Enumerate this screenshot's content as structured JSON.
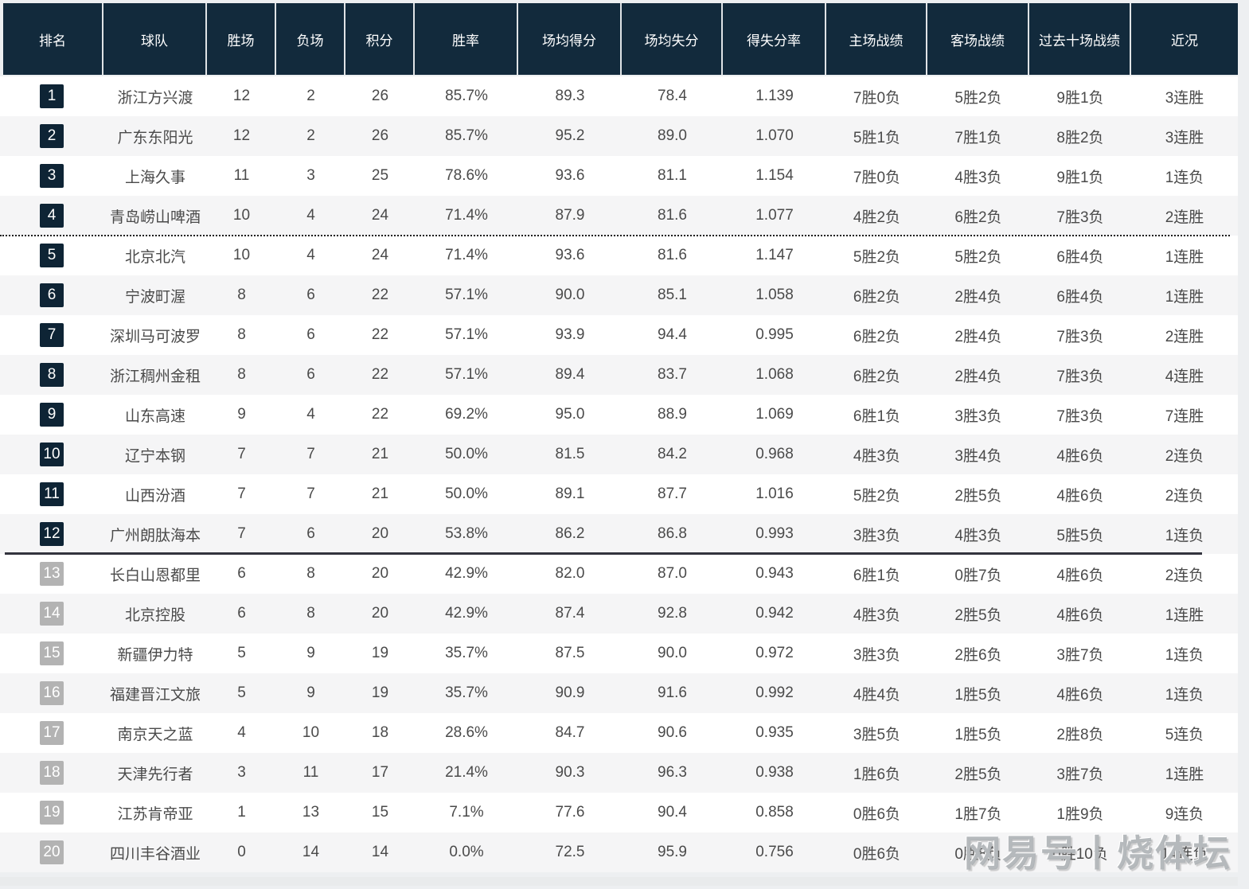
{
  "colors": {
    "page_bg": "#edeff1",
    "header_bg": "#122a3c",
    "badge_dark": "#0e2435",
    "badge_gray": "#b3b3b3",
    "row_alt": "#f5f5f6",
    "solid_separator": "#33343e"
  },
  "watermark": "网易号丨烧体坛",
  "table": {
    "columns": [
      "排名",
      "球队",
      "胜场",
      "负场",
      "积分",
      "胜率",
      "场均得分",
      "场均失分",
      "得失分率",
      "主场战绩",
      "客场战绩",
      "过去十场战绩",
      "近况"
    ],
    "rows": [
      {
        "rank": "1",
        "team": "浙江方兴渡",
        "wins": "12",
        "losses": "2",
        "points": "26",
        "win_pct": "85.7%",
        "ppg": "89.3",
        "papg": "78.4",
        "ratio": "1.139",
        "home": "7胜0负",
        "away": "5胜2负",
        "last10": "9胜1负",
        "streak": "3连胜",
        "badge": "dark",
        "separator": ""
      },
      {
        "rank": "2",
        "team": "广东东阳光",
        "wins": "12",
        "losses": "2",
        "points": "26",
        "win_pct": "85.7%",
        "ppg": "95.2",
        "papg": "89.0",
        "ratio": "1.070",
        "home": "5胜1负",
        "away": "7胜1负",
        "last10": "8胜2负",
        "streak": "3连胜",
        "badge": "dark",
        "separator": ""
      },
      {
        "rank": "3",
        "team": "上海久事",
        "wins": "11",
        "losses": "3",
        "points": "25",
        "win_pct": "78.6%",
        "ppg": "93.6",
        "papg": "81.1",
        "ratio": "1.154",
        "home": "7胜0负",
        "away": "4胜3负",
        "last10": "9胜1负",
        "streak": "1连负",
        "badge": "dark",
        "separator": ""
      },
      {
        "rank": "4",
        "team": "青岛崂山啤酒",
        "wins": "10",
        "losses": "4",
        "points": "24",
        "win_pct": "71.4%",
        "ppg": "87.9",
        "papg": "81.6",
        "ratio": "1.077",
        "home": "4胜2负",
        "away": "6胜2负",
        "last10": "7胜3负",
        "streak": "2连胜",
        "badge": "dark",
        "separator": "dotted"
      },
      {
        "rank": "5",
        "team": "北京北汽",
        "wins": "10",
        "losses": "4",
        "points": "24",
        "win_pct": "71.4%",
        "ppg": "93.6",
        "papg": "81.6",
        "ratio": "1.147",
        "home": "5胜2负",
        "away": "5胜2负",
        "last10": "6胜4负",
        "streak": "1连胜",
        "badge": "dark",
        "separator": ""
      },
      {
        "rank": "6",
        "team": "宁波町渥",
        "wins": "8",
        "losses": "6",
        "points": "22",
        "win_pct": "57.1%",
        "ppg": "90.0",
        "papg": "85.1",
        "ratio": "1.058",
        "home": "6胜2负",
        "away": "2胜4负",
        "last10": "6胜4负",
        "streak": "1连胜",
        "badge": "dark",
        "separator": ""
      },
      {
        "rank": "7",
        "team": "深圳马可波罗",
        "wins": "8",
        "losses": "6",
        "points": "22",
        "win_pct": "57.1%",
        "ppg": "93.9",
        "papg": "94.4",
        "ratio": "0.995",
        "home": "6胜2负",
        "away": "2胜4负",
        "last10": "7胜3负",
        "streak": "2连胜",
        "badge": "dark",
        "separator": ""
      },
      {
        "rank": "8",
        "team": "浙江稠州金租",
        "wins": "8",
        "losses": "6",
        "points": "22",
        "win_pct": "57.1%",
        "ppg": "89.4",
        "papg": "83.7",
        "ratio": "1.068",
        "home": "6胜2负",
        "away": "2胜4负",
        "last10": "7胜3负",
        "streak": "4连胜",
        "badge": "dark",
        "separator": ""
      },
      {
        "rank": "9",
        "team": "山东高速",
        "wins": "9",
        "losses": "4",
        "points": "22",
        "win_pct": "69.2%",
        "ppg": "95.0",
        "papg": "88.9",
        "ratio": "1.069",
        "home": "6胜1负",
        "away": "3胜3负",
        "last10": "7胜3负",
        "streak": "7连胜",
        "badge": "dark",
        "separator": ""
      },
      {
        "rank": "10",
        "team": "辽宁本钢",
        "wins": "7",
        "losses": "7",
        "points": "21",
        "win_pct": "50.0%",
        "ppg": "81.5",
        "papg": "84.2",
        "ratio": "0.968",
        "home": "4胜3负",
        "away": "3胜4负",
        "last10": "4胜6负",
        "streak": "2连负",
        "badge": "dark",
        "separator": ""
      },
      {
        "rank": "11",
        "team": "山西汾酒",
        "wins": "7",
        "losses": "7",
        "points": "21",
        "win_pct": "50.0%",
        "ppg": "89.1",
        "papg": "87.7",
        "ratio": "1.016",
        "home": "5胜2负",
        "away": "2胜5负",
        "last10": "4胜6负",
        "streak": "2连负",
        "badge": "dark",
        "separator": ""
      },
      {
        "rank": "12",
        "team": "广州朗肽海本",
        "wins": "7",
        "losses": "6",
        "points": "20",
        "win_pct": "53.8%",
        "ppg": "86.2",
        "papg": "86.8",
        "ratio": "0.993",
        "home": "3胜3负",
        "away": "4胜3负",
        "last10": "5胜5负",
        "streak": "1连负",
        "badge": "dark",
        "separator": "solid"
      },
      {
        "rank": "13",
        "team": "长白山恩都里",
        "wins": "6",
        "losses": "8",
        "points": "20",
        "win_pct": "42.9%",
        "ppg": "82.0",
        "papg": "87.0",
        "ratio": "0.943",
        "home": "6胜1负",
        "away": "0胜7负",
        "last10": "4胜6负",
        "streak": "2连负",
        "badge": "gray",
        "separator": ""
      },
      {
        "rank": "14",
        "team": "北京控股",
        "wins": "6",
        "losses": "8",
        "points": "20",
        "win_pct": "42.9%",
        "ppg": "87.4",
        "papg": "92.8",
        "ratio": "0.942",
        "home": "4胜3负",
        "away": "2胜5负",
        "last10": "4胜6负",
        "streak": "1连胜",
        "badge": "gray",
        "separator": ""
      },
      {
        "rank": "15",
        "team": "新疆伊力特",
        "wins": "5",
        "losses": "9",
        "points": "19",
        "win_pct": "35.7%",
        "ppg": "87.5",
        "papg": "90.0",
        "ratio": "0.972",
        "home": "3胜3负",
        "away": "2胜6负",
        "last10": "3胜7负",
        "streak": "1连负",
        "badge": "gray",
        "separator": ""
      },
      {
        "rank": "16",
        "team": "福建晋江文旅",
        "wins": "5",
        "losses": "9",
        "points": "19",
        "win_pct": "35.7%",
        "ppg": "90.9",
        "papg": "91.6",
        "ratio": "0.992",
        "home": "4胜4负",
        "away": "1胜5负",
        "last10": "4胜6负",
        "streak": "1连负",
        "badge": "gray",
        "separator": ""
      },
      {
        "rank": "17",
        "team": "南京天之蓝",
        "wins": "4",
        "losses": "10",
        "points": "18",
        "win_pct": "28.6%",
        "ppg": "84.7",
        "papg": "90.6",
        "ratio": "0.935",
        "home": "3胜5负",
        "away": "1胜5负",
        "last10": "2胜8负",
        "streak": "5连负",
        "badge": "gray",
        "separator": ""
      },
      {
        "rank": "18",
        "team": "天津先行者",
        "wins": "3",
        "losses": "11",
        "points": "17",
        "win_pct": "21.4%",
        "ppg": "90.3",
        "papg": "96.3",
        "ratio": "0.938",
        "home": "1胜6负",
        "away": "2胜5负",
        "last10": "3胜7负",
        "streak": "1连胜",
        "badge": "gray",
        "separator": ""
      },
      {
        "rank": "19",
        "team": "江苏肯帝亚",
        "wins": "1",
        "losses": "13",
        "points": "15",
        "win_pct": "7.1%",
        "ppg": "77.6",
        "papg": "90.4",
        "ratio": "0.858",
        "home": "0胜6负",
        "away": "1胜7负",
        "last10": "1胜9负",
        "streak": "9连负",
        "badge": "gray",
        "separator": ""
      },
      {
        "rank": "20",
        "team": "四川丰谷酒业",
        "wins": "0",
        "losses": "14",
        "points": "14",
        "win_pct": "0.0%",
        "ppg": "72.5",
        "papg": "95.9",
        "ratio": "0.756",
        "home": "0胜6负",
        "away": "0胜8负",
        "last10": "0胜10负",
        "streak": "14连负",
        "badge": "gray",
        "separator": ""
      }
    ]
  }
}
